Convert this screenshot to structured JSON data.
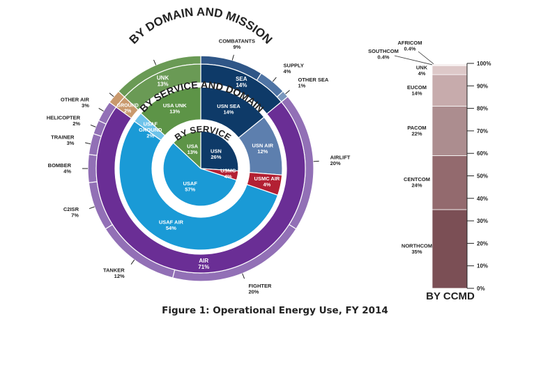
{
  "caption": "Figure 1: Operational Energy Use, FY 2014",
  "chart_data": [
    {
      "type": "pie",
      "title": "BY DOMAIN AND MISSION",
      "ring": "outer",
      "segments": [
        {
          "label": "COMBATANTS",
          "value": 9,
          "color": "#2f5687"
        },
        {
          "label": "SUPPLY",
          "value": 4,
          "color": "#4f74a4"
        },
        {
          "label": "OTHER SEA",
          "value": 1,
          "color": "#7a97bd"
        },
        {
          "label": "AIRLIFT",
          "value": 20,
          "color": "#9270b6"
        },
        {
          "label": "FIGHTER",
          "value": 20,
          "color": "#9270b6"
        },
        {
          "label": "TANKER",
          "value": 12,
          "color": "#9270b6"
        },
        {
          "label": "C2ISR",
          "value": 7,
          "color": "#9270b6"
        },
        {
          "label": "BOMBER",
          "value": 4,
          "color": "#9270b6"
        },
        {
          "label": "TRAINER",
          "value": 3,
          "color": "#9270b6"
        },
        {
          "label": "HELICOPTER",
          "value": 2,
          "color": "#9270b6"
        },
        {
          "label": "OTHER AIR",
          "value": 3,
          "color": "#9270b6"
        },
        {
          "label": "GROUND",
          "value": 2,
          "color": "#c9996d"
        },
        {
          "label": "UNK",
          "value": 13,
          "color": "#6a9a55"
        }
      ],
      "domain_ring": [
        {
          "label": "SEA",
          "value": 14,
          "color": "#0e3a68"
        },
        {
          "label": "AIR",
          "value": 71,
          "color": "#6a2e95"
        },
        {
          "label": "GROUND",
          "value": 2,
          "color": "#c9996d"
        },
        {
          "label": "UNK",
          "value": 13,
          "color": "#6a9a55"
        }
      ]
    },
    {
      "type": "pie",
      "title": "BY SERVICE AND DOMAIN",
      "ring": "middle",
      "segments": [
        {
          "label": "USN SEA",
          "value": 14,
          "color": "#0e3a68"
        },
        {
          "label": "USN AIR",
          "value": 12,
          "color": "#5d7fae"
        },
        {
          "label": "USMC AIR",
          "value": 4,
          "color": "#b32033"
        },
        {
          "label": "USAF AIR",
          "value": 54,
          "color": "#1a9ad6"
        },
        {
          "label": "USAF GROUND",
          "value": 2,
          "color": "#6ec3ea"
        },
        {
          "label": "USA UNK",
          "value": 13,
          "color": "#5d9447"
        }
      ]
    },
    {
      "type": "pie",
      "title": "BY SERVICE",
      "ring": "inner",
      "segments": [
        {
          "label": "USN",
          "value": 26,
          "color": "#0e3a68"
        },
        {
          "label": "USMC",
          "value": 4,
          "color": "#b32033"
        },
        {
          "label": "USAF",
          "value": 57,
          "color": "#1a9ad6"
        },
        {
          "label": "USA",
          "value": 13,
          "color": "#5d9447"
        }
      ]
    },
    {
      "type": "bar",
      "stacked": true,
      "title": "BY CCMD",
      "ylim": [
        0,
        100
      ],
      "yticks": [
        "0%",
        "10%",
        "20%",
        "30%",
        "40%",
        "50%",
        "60%",
        "70%",
        "80%",
        "90%",
        "100%"
      ],
      "segments": [
        {
          "label": "NORTHCOM",
          "value": 35,
          "color": "#7b4f55"
        },
        {
          "label": "CENTCOM",
          "value": 24,
          "color": "#936a6e"
        },
        {
          "label": "PACOM",
          "value": 22,
          "color": "#ac8d8f"
        },
        {
          "label": "EUCOM",
          "value": 14,
          "color": "#c7abac"
        },
        {
          "label": "UNK",
          "value": 4,
          "color": "#ddc8c8"
        },
        {
          "label": "SOUTHCOM",
          "value": 0.4,
          "color": "#e6d6d6"
        },
        {
          "label": "AFRICOM",
          "value": 0.4,
          "color": "#ede0e0"
        }
      ]
    }
  ]
}
